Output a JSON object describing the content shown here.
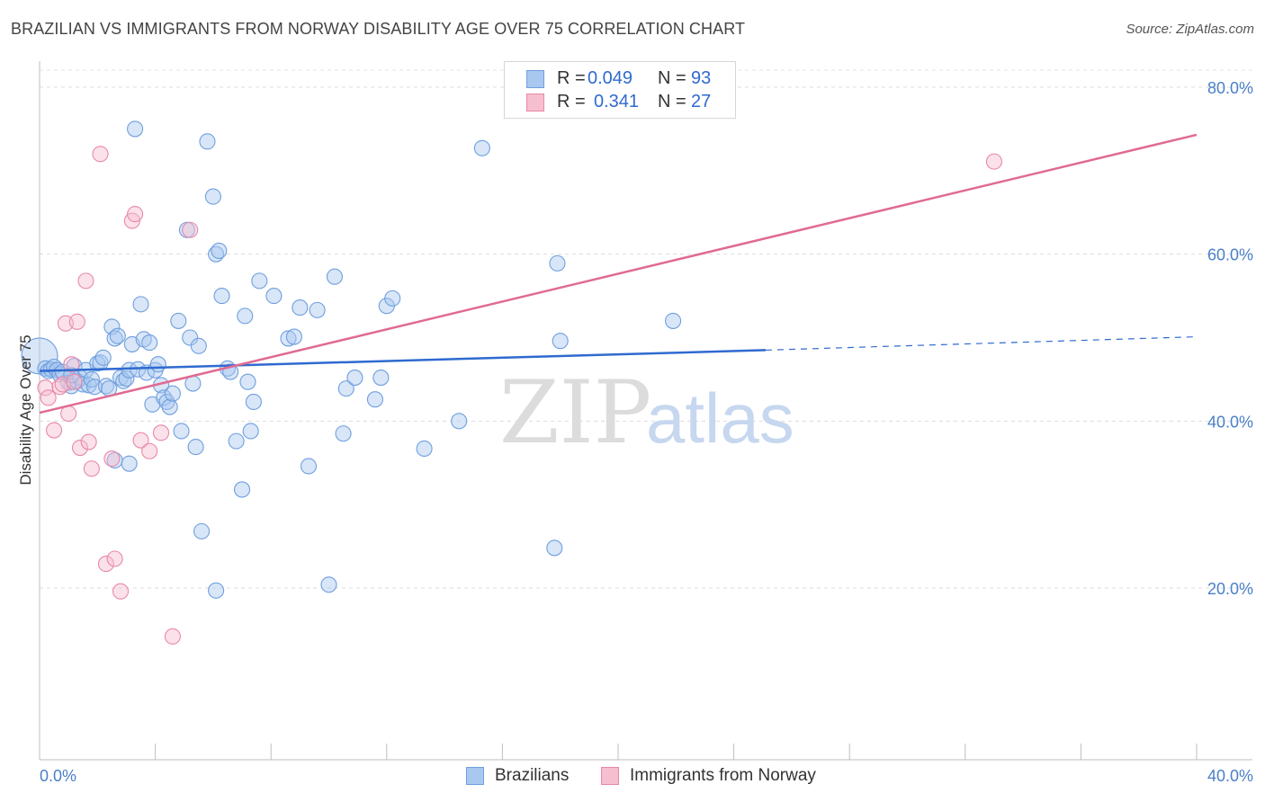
{
  "title": "BRAZILIAN VS IMMIGRANTS FROM NORWAY DISABILITY AGE OVER 75 CORRELATION CHART",
  "source": "Source: ZipAtlas.com",
  "watermark": {
    "zip": "ZIP",
    "atlas": "atlas"
  },
  "legend": {
    "rows": [
      {
        "r_label": "R =",
        "r_value": "0.049",
        "n_label": "N =",
        "n_value": "93",
        "color": "#a9c8f0",
        "border": "#6f9fde"
      },
      {
        "r_label": "R =",
        "r_value": "0.341",
        "n_label": "N =",
        "n_value": "27",
        "color": "#f6bfd0",
        "border": "#e888a8"
      }
    ]
  },
  "bottom_legend": {
    "items": [
      {
        "label": "Brazilians",
        "color": "#a9c8f0",
        "border": "#6f9fde"
      },
      {
        "label": "Immigrants from Norway",
        "color": "#f6bfd0",
        "border": "#e888a8"
      }
    ]
  },
  "chart_data": {
    "type": "scatter",
    "title": "BRAZILIAN VS IMMIGRANTS FROM NORWAY DISABILITY AGE OVER 75 CORRELATION CHART",
    "xlabel": "",
    "ylabel": "Disability Age Over 75",
    "xlim": [
      0,
      40
    ],
    "ylim": [
      0,
      85
    ],
    "x_tick_labels": [
      {
        "value": 0,
        "label": "0.0%"
      },
      {
        "value": 40,
        "label": "40.0%"
      }
    ],
    "y_tick_labels": [
      {
        "value": 20,
        "label": "20.0%"
      },
      {
        "value": 40,
        "label": "40.0%"
      },
      {
        "value": 60,
        "label": "60.0%"
      },
      {
        "value": 80,
        "label": "80.0%"
      }
    ],
    "y_gridlines": [
      20,
      40,
      60,
      80
    ],
    "grid": true,
    "legend_position": "top-center",
    "series": [
      {
        "name": "Brazilians",
        "color": "#a9c8f0",
        "stroke": "#6f9fde",
        "trend_color": "#2f6ad0",
        "trend": {
          "x": [
            0,
            25.1
          ],
          "y": [
            46.0,
            48.5
          ],
          "dashed_to_x": 40,
          "dashed_to_y": 50.1
        },
        "points": [
          [
            0.0,
            47.8
          ],
          [
            0.2,
            46.3
          ],
          [
            0.3,
            46.0
          ],
          [
            0.4,
            46.2
          ],
          [
            0.5,
            46.5
          ],
          [
            0.6,
            46.1
          ],
          [
            0.7,
            45.6
          ],
          [
            0.8,
            45.9
          ],
          [
            1.0,
            44.6
          ],
          [
            1.1,
            44.2
          ],
          [
            1.2,
            46.6
          ],
          [
            1.3,
            44.8
          ],
          [
            1.4,
            45.2
          ],
          [
            1.5,
            44.4
          ],
          [
            1.6,
            46.1
          ],
          [
            1.7,
            44.3
          ],
          [
            1.8,
            45.0
          ],
          [
            1.9,
            44.1
          ],
          [
            2.0,
            46.9
          ],
          [
            2.1,
            47.0
          ],
          [
            2.2,
            47.6
          ],
          [
            2.3,
            44.2
          ],
          [
            2.4,
            43.9
          ],
          [
            2.5,
            51.3
          ],
          [
            2.6,
            49.9
          ],
          [
            2.7,
            50.2
          ],
          [
            2.8,
            45.2
          ],
          [
            2.9,
            44.8
          ],
          [
            3.0,
            45.1
          ],
          [
            3.1,
            46.1
          ],
          [
            3.2,
            49.2
          ],
          [
            3.3,
            75.0
          ],
          [
            3.4,
            46.2
          ],
          [
            3.5,
            54.0
          ],
          [
            3.6,
            49.8
          ],
          [
            3.7,
            45.8
          ],
          [
            3.8,
            49.4
          ],
          [
            3.9,
            42.0
          ],
          [
            4.0,
            46.1
          ],
          [
            4.1,
            46.8
          ],
          [
            4.2,
            44.3
          ],
          [
            4.3,
            42.8
          ],
          [
            4.4,
            42.3
          ],
          [
            4.5,
            41.7
          ],
          [
            4.6,
            43.3
          ],
          [
            4.8,
            52.0
          ],
          [
            4.9,
            38.8
          ],
          [
            5.1,
            62.9
          ],
          [
            5.2,
            50.0
          ],
          [
            5.3,
            44.5
          ],
          [
            5.4,
            36.9
          ],
          [
            5.5,
            49.0
          ],
          [
            5.6,
            26.8
          ],
          [
            5.8,
            73.5
          ],
          [
            6.0,
            66.9
          ],
          [
            6.1,
            60.0
          ],
          [
            6.2,
            60.4
          ],
          [
            6.3,
            55.0
          ],
          [
            6.5,
            46.3
          ],
          [
            6.6,
            45.9
          ],
          [
            6.8,
            37.6
          ],
          [
            7.0,
            31.8
          ],
          [
            7.1,
            52.6
          ],
          [
            7.2,
            44.7
          ],
          [
            7.3,
            38.8
          ],
          [
            7.4,
            42.3
          ],
          [
            7.6,
            56.8
          ],
          [
            8.1,
            55.0
          ],
          [
            8.6,
            49.9
          ],
          [
            8.8,
            50.1
          ],
          [
            9.0,
            53.6
          ],
          [
            9.3,
            34.6
          ],
          [
            9.6,
            53.3
          ],
          [
            10.0,
            20.4
          ],
          [
            10.2,
            57.3
          ],
          [
            10.5,
            38.5
          ],
          [
            10.6,
            43.9
          ],
          [
            10.9,
            45.2
          ],
          [
            11.6,
            42.6
          ],
          [
            11.8,
            45.2
          ],
          [
            12.0,
            53.8
          ],
          [
            12.2,
            54.7
          ],
          [
            13.3,
            36.7
          ],
          [
            14.5,
            40.0
          ],
          [
            15.3,
            72.7
          ],
          [
            17.8,
            24.8
          ],
          [
            17.9,
            58.9
          ],
          [
            18.0,
            49.6
          ],
          [
            21.9,
            52.0
          ],
          [
            2.6,
            35.3
          ],
          [
            3.1,
            34.9
          ],
          [
            6.1,
            19.7
          ],
          [
            1.1,
            45.5
          ]
        ]
      },
      {
        "name": "Immigrants from Norway",
        "color": "#f6bfd0",
        "stroke": "#e888a8",
        "trend_color": "#e06a93",
        "trend": {
          "x": [
            0,
            40
          ],
          "y": [
            41.0,
            74.3
          ]
        },
        "points": [
          [
            0.2,
            44.0
          ],
          [
            0.3,
            42.8
          ],
          [
            0.5,
            38.9
          ],
          [
            0.7,
            44.1
          ],
          [
            0.8,
            44.4
          ],
          [
            0.9,
            51.7
          ],
          [
            1.0,
            40.9
          ],
          [
            1.2,
            44.7
          ],
          [
            1.3,
            51.9
          ],
          [
            1.4,
            36.8
          ],
          [
            1.6,
            56.8
          ],
          [
            1.7,
            37.5
          ],
          [
            1.8,
            34.3
          ],
          [
            2.1,
            72.0
          ],
          [
            2.3,
            22.9
          ],
          [
            2.5,
            35.5
          ],
          [
            2.6,
            23.5
          ],
          [
            2.8,
            19.6
          ],
          [
            3.2,
            64.0
          ],
          [
            3.3,
            64.8
          ],
          [
            3.5,
            37.7
          ],
          [
            3.8,
            36.4
          ],
          [
            4.2,
            38.6
          ],
          [
            4.6,
            14.2
          ],
          [
            5.2,
            62.9
          ],
          [
            33.0,
            71.1
          ],
          [
            1.1,
            46.8
          ]
        ]
      }
    ]
  }
}
